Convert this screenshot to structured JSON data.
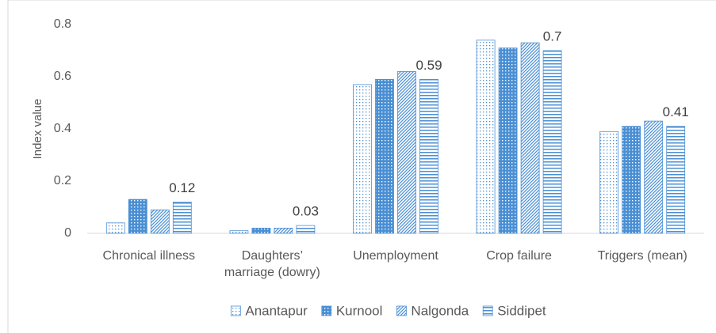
{
  "chart_data": {
    "type": "bar",
    "y_label": "Index value",
    "categories": [
      "Chronical illness",
      "Daughters’ marriage (dowry)",
      "Unemployment",
      "Crop failure",
      "Triggers (mean)"
    ],
    "series": [
      {
        "name": "Anantapur",
        "color": "#4a8fd4",
        "pattern": "dots",
        "data_labels": false,
        "values": [
          0.04,
          0.01,
          0.57,
          0.74,
          0.39
        ]
      },
      {
        "name": "Kurnool",
        "color": "#4a8fd4",
        "pattern": "dense",
        "data_labels": false,
        "values": [
          0.13,
          0.02,
          0.59,
          0.71,
          0.41
        ]
      },
      {
        "name": "Nalgonda",
        "color": "#4a8fd4",
        "pattern": "diagonal",
        "data_labels": false,
        "values": [
          0.09,
          0.02,
          0.62,
          0.73,
          0.43
        ]
      },
      {
        "name": "Siddipet",
        "color": "#4a8fd4",
        "pattern": "horizontal",
        "data_labels": true,
        "values": [
          0.12,
          0.03,
          0.59,
          0.7,
          0.41
        ]
      }
    ],
    "ylim": [
      0,
      0.8
    ],
    "yticks": [
      0,
      0.2,
      0.4,
      0.6,
      0.8
    ],
    "grid": false,
    "legend": "bottom"
  }
}
